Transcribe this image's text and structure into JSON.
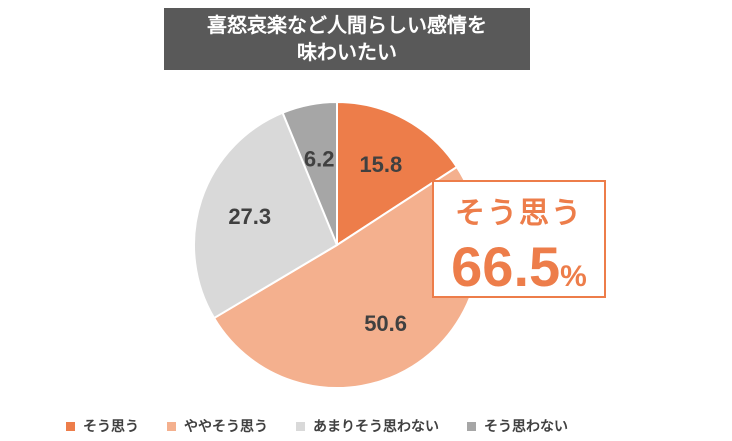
{
  "title": {
    "line1": "喜怒哀楽など人間らしい感情を",
    "line2": "味わいたい"
  },
  "callout": {
    "label": "そう思う",
    "value": "66.5",
    "unit": "%"
  },
  "chart_data": {
    "type": "pie",
    "categories": [
      "そう思う",
      "ややそう思う",
      "あまりそう思わない",
      "そう思わない"
    ],
    "values": [
      15.8,
      50.6,
      27.3,
      6.2
    ],
    "labels": [
      "15.8",
      "50.6",
      "27.3",
      "6.2"
    ],
    "colors": [
      "#ED7D4A",
      "#F4B08E",
      "#D9D9D9",
      "#A6A6A6"
    ],
    "legend_position": "bottom",
    "start_angle_deg": 0,
    "direction": "clockwise"
  },
  "legend": [
    {
      "label": "そう思う",
      "color": "#ED7D4A"
    },
    {
      "label": "ややそう思う",
      "color": "#F4B08E"
    },
    {
      "label": "あまりそう思わない",
      "color": "#D9D9D9"
    },
    {
      "label": "そう思わない",
      "color": "#A6A6A6"
    }
  ]
}
